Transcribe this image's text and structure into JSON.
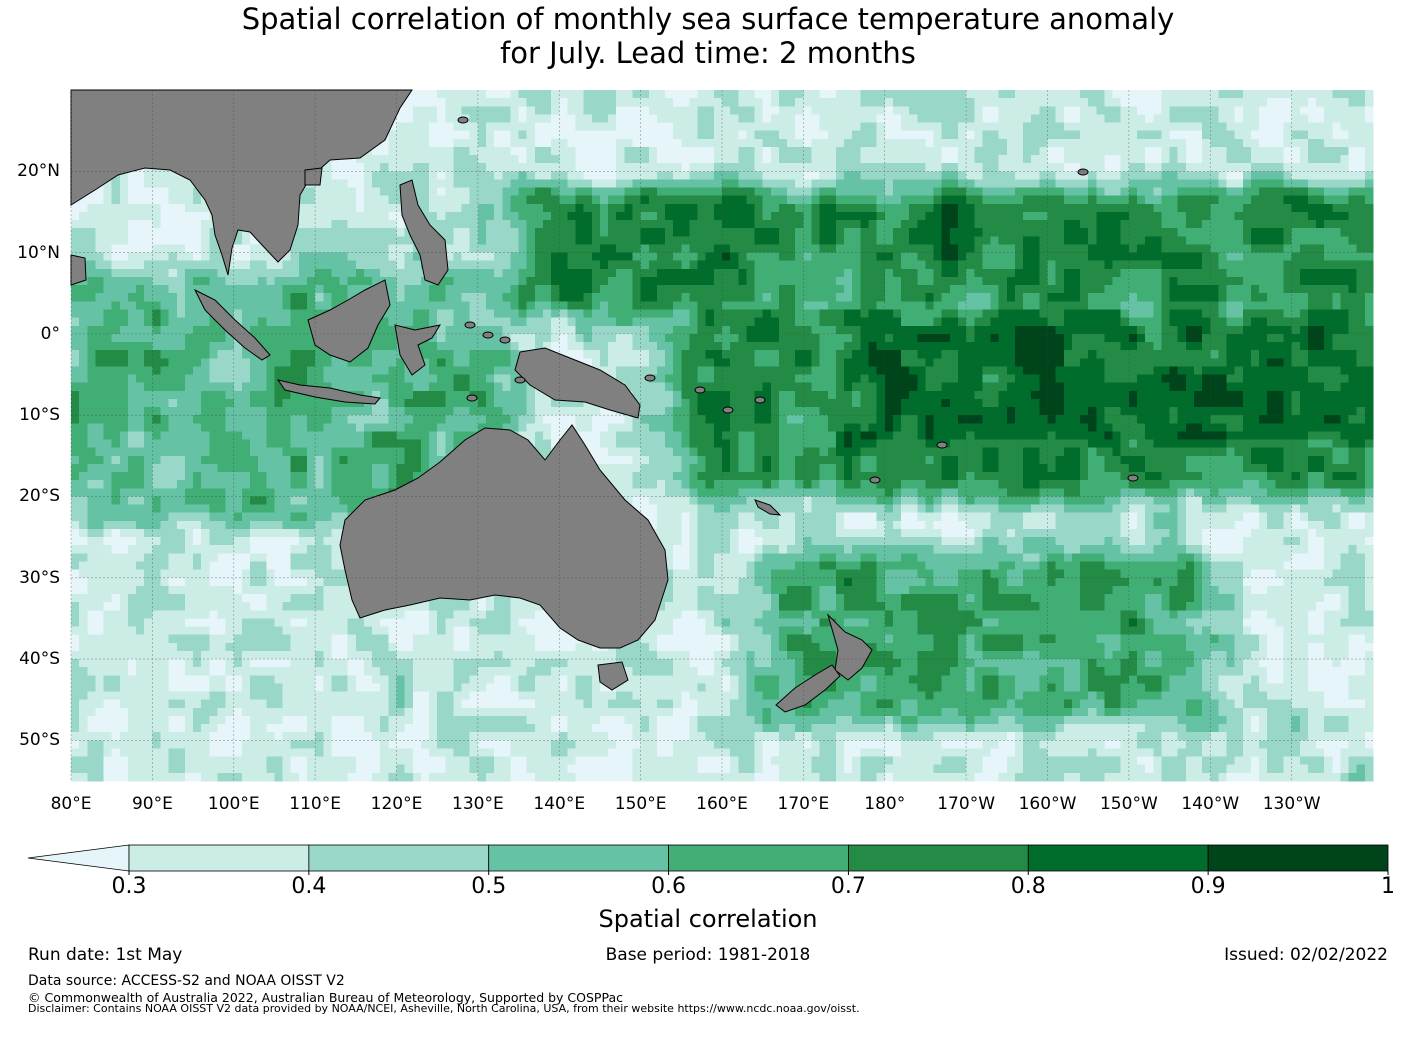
{
  "title": {
    "line1": "Spatial correlation of monthly sea surface temperature anomaly",
    "line2": "for July. Lead time: 2 months"
  },
  "map": {
    "extent": {
      "lon": [
        80,
        240
      ],
      "lat": [
        -55,
        30
      ]
    },
    "land_color": "#808080",
    "ocean_min_color": "#e5f5f9",
    "longitude_labels": [
      {
        "lon": 80,
        "label": "80°E"
      },
      {
        "lon": 90,
        "label": "90°E"
      },
      {
        "lon": 100,
        "label": "100°E"
      },
      {
        "lon": 110,
        "label": "110°E"
      },
      {
        "lon": 120,
        "label": "120°E"
      },
      {
        "lon": 130,
        "label": "130°E"
      },
      {
        "lon": 140,
        "label": "140°E"
      },
      {
        "lon": 150,
        "label": "150°E"
      },
      {
        "lon": 160,
        "label": "160°E"
      },
      {
        "lon": 170,
        "label": "170°E"
      },
      {
        "lon": 180,
        "label": "180°"
      },
      {
        "lon": 190,
        "label": "170°W"
      },
      {
        "lon": 200,
        "label": "160°W"
      },
      {
        "lon": 210,
        "label": "150°W"
      },
      {
        "lon": 220,
        "label": "140°W"
      },
      {
        "lon": 230,
        "label": "130°W"
      }
    ],
    "latitude_labels": [
      {
        "lat": 20,
        "label": "20°N"
      },
      {
        "lat": 10,
        "label": "10°N"
      },
      {
        "lat": 0,
        "label": "0°"
      },
      {
        "lat": -10,
        "label": "10°S"
      },
      {
        "lat": -20,
        "label": "20°S"
      },
      {
        "lat": -30,
        "label": "30°S"
      },
      {
        "lat": -40,
        "label": "40°S"
      },
      {
        "lat": -50,
        "label": "50°S"
      }
    ],
    "regions": [
      {
        "name": "equatorial-pacific-core",
        "lon": [
          180,
          240
        ],
        "lat": [
          -12,
          0
        ],
        "correlation": 0.85
      },
      {
        "name": "equatorial-pacific-band",
        "lon": [
          160,
          240
        ],
        "lat": [
          -17,
          2
        ],
        "correlation": 0.75
      },
      {
        "name": "north-pacific-band",
        "lon": [
          140,
          240
        ],
        "lat": [
          5,
          15
        ],
        "correlation": 0.75
      },
      {
        "name": "tropical-indian-ocean",
        "lon": [
          80,
          130
        ],
        "lat": [
          -20,
          5
        ],
        "correlation": 0.6
      },
      {
        "name": "tasman-southwest-pacific",
        "lon": [
          170,
          215
        ],
        "lat": [
          -45,
          -30
        ],
        "correlation": 0.65
      },
      {
        "name": "southern-ocean",
        "lon": [
          80,
          240
        ],
        "lat": [
          -55,
          -45
        ],
        "correlation": 0.35
      }
    ]
  },
  "colorbar": {
    "levels": [
      0.3,
      0.4,
      0.5,
      0.6,
      0.7,
      0.8,
      0.9,
      1.0
    ],
    "tick_labels": [
      "0.3",
      "0.4",
      "0.5",
      "0.6",
      "0.7",
      "0.8",
      "0.9",
      "1"
    ],
    "colors": [
      "#ccece6",
      "#99d8c9",
      "#66c2a4",
      "#41ae76",
      "#238b45",
      "#006d2c",
      "#00441b"
    ],
    "under_color": "#e5f5f9",
    "label": "Spatial correlation"
  },
  "footer": {
    "run_date": "Run date: 1st May",
    "base_period": "Base period: 1981-2018",
    "issued": "Issued: 02/02/2022",
    "data_source": "Data source: ACCESS-S2 and NOAA OISST V2",
    "copyright": "© Commonwealth of Australia 2022, Australian Bureau of Meteorology, Supported by COSPPac",
    "disclaimer": "Disclaimer: Contains NOAA OISST V2 data provided by NOAA/NCEI, Asheville, North Carolina, USA, from their website https://www.ncdc.noaa.gov/oisst."
  }
}
